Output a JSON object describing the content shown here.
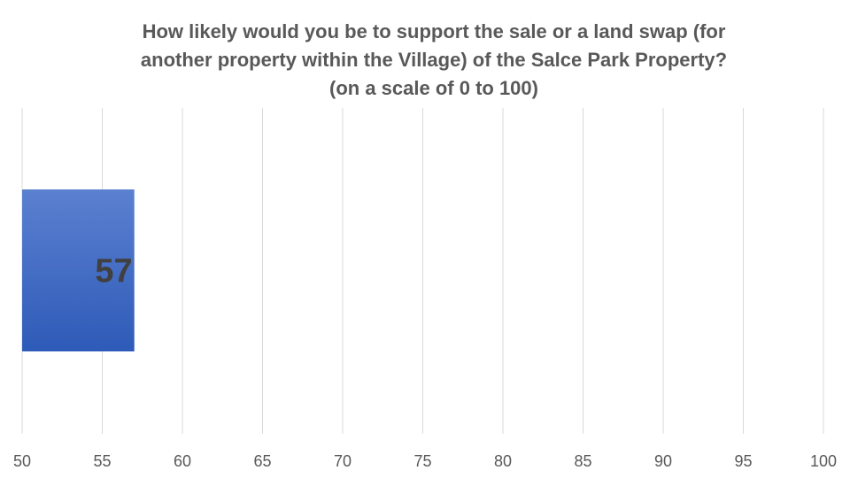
{
  "chart_data": {
    "type": "bar",
    "orientation": "horizontal",
    "title_lines": [
      "How likely would you be to support the sale or a land swap (for",
      "another property within the Village) of the Salce Park Property?",
      "(on a scale of 0 to 100)"
    ],
    "categories": [
      ""
    ],
    "values": [
      57
    ],
    "data_labels": [
      "57"
    ],
    "xlim": [
      50,
      100
    ],
    "x_ticks": [
      50,
      55,
      60,
      65,
      70,
      75,
      80,
      85,
      90,
      95,
      100
    ],
    "x_tick_labels": [
      "50",
      "55",
      "60",
      "65",
      "70",
      "75",
      "80",
      "85",
      "90",
      "95",
      "100"
    ],
    "grid": true,
    "legend": "none",
    "bar_color_top": "#5b80d0",
    "bar_color_bottom": "#2e5bb8",
    "gridline_color": "#d9d9d9",
    "text_color": "#595959",
    "data_label_color": "#404040"
  }
}
